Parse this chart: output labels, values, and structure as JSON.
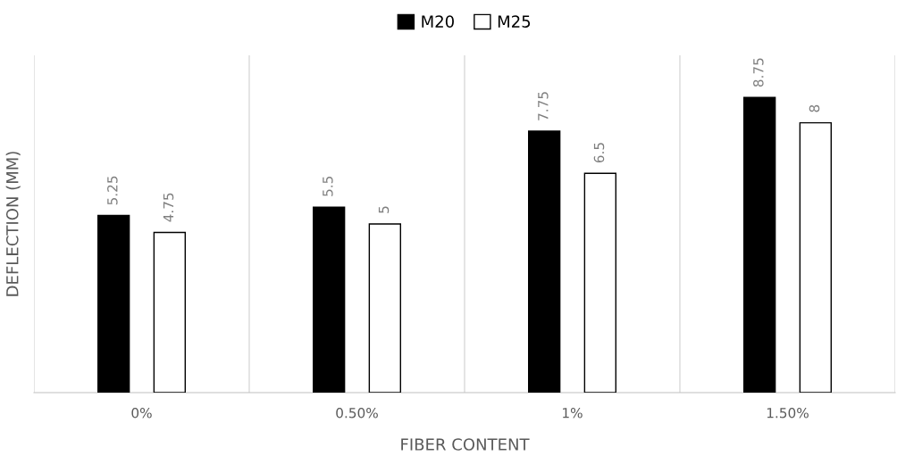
{
  "chart_data": {
    "type": "bar",
    "xlabel": "FIBER CONTENT",
    "ylabel": "DEFLECTION (MM)",
    "categories": [
      "0%",
      "0.50%",
      "1%",
      "1.50%"
    ],
    "series": [
      {
        "name": "M20",
        "color": "#000000",
        "values": [
          5.25,
          5.5,
          7.75,
          8.75
        ]
      },
      {
        "name": "M25",
        "color": "#ffffff",
        "values": [
          4.75,
          5,
          6.5,
          8
        ]
      }
    ],
    "ylim": [
      0,
      10
    ],
    "tick_labels": "x",
    "data_labels": true,
    "grid": "x",
    "legend": "top"
  }
}
